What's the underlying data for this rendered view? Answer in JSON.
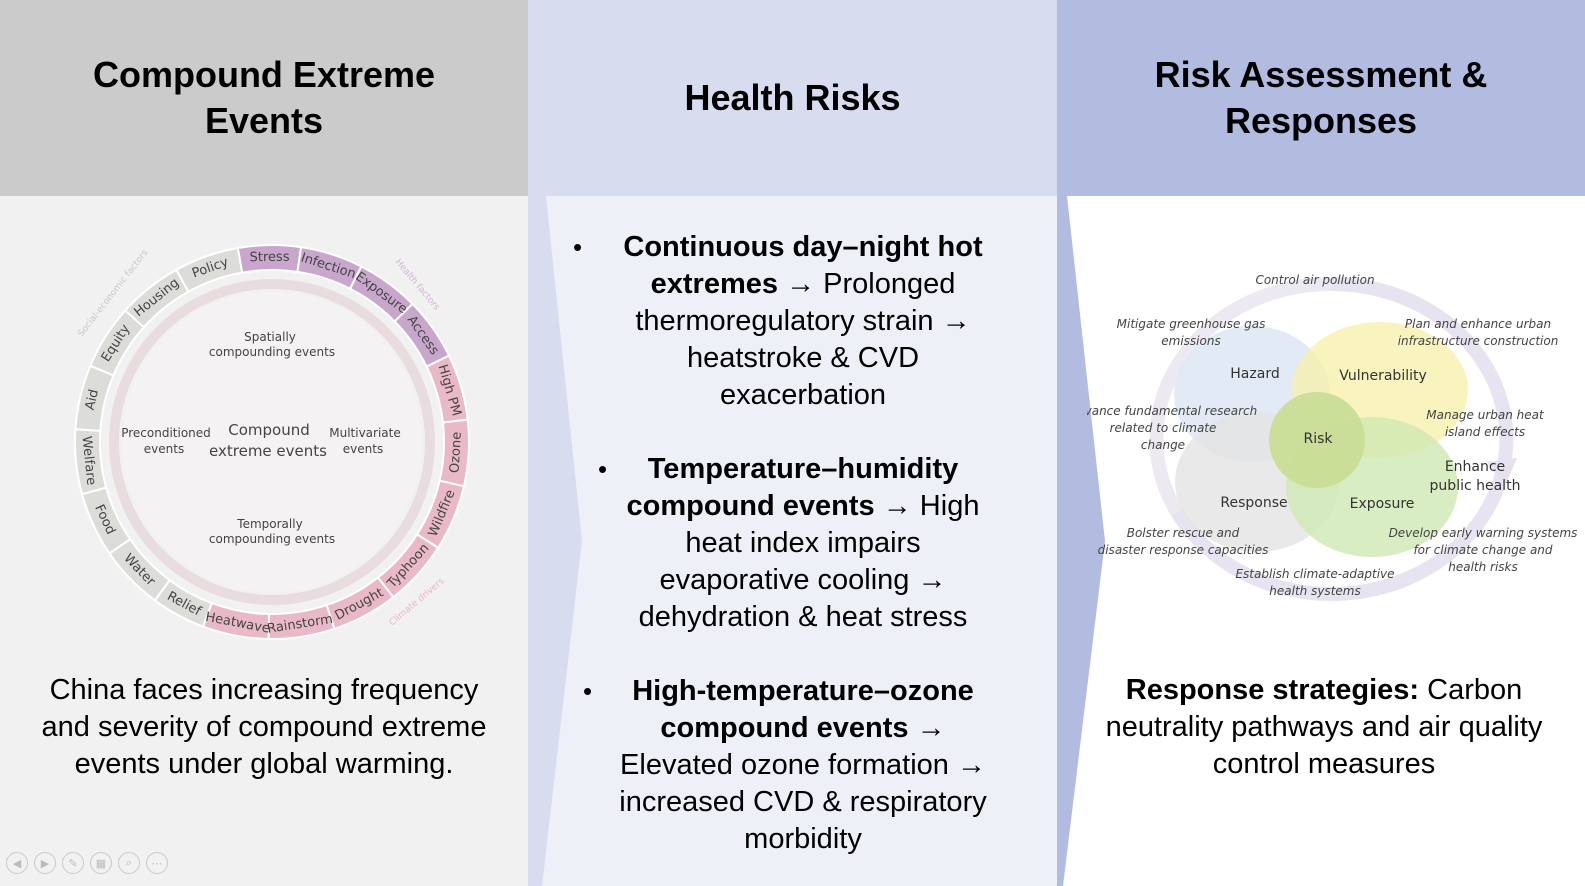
{
  "panels": {
    "left": {
      "title": "Compound Extreme Events",
      "caption": "China faces increasing frequency and severity of compound extreme events under global warming.",
      "diagram": {
        "center": "Compound extreme events",
        "spatial": "Spatially compounding events",
        "preconditioned": "Preconditioned events",
        "multivariate": "Multivariate events",
        "temporal": "Temporally compounding events",
        "sectors": {
          "social": "Social-economic factors",
          "health": "Health factors",
          "climate": "Climate drivers"
        },
        "ring_labels": {
          "social": [
            "Water",
            "Food",
            "Welfare",
            "Aid",
            "Equity",
            "Housing",
            "Policy"
          ],
          "relief": "Relief",
          "health": [
            "Stress",
            "Infection",
            "Exposure",
            "Access"
          ],
          "climate": [
            "High PM",
            "Ozone",
            "Wildfire",
            "Typhoon",
            "Drought",
            "Rainstorm",
            "Heatwave"
          ]
        }
      }
    },
    "middle": {
      "title": "Health Risks",
      "items": [
        {
          "bold": "Continuous day–night hot extremes",
          "rest": " → Prolonged thermoregulatory strain → heatstroke & CVD exacerbation"
        },
        {
          "bold": "Temperature–humidity compound events",
          "rest": " → High heat index impairs evaporative cooling → dehydration & heat stress"
        },
        {
          "bold": "High-temperature–ozone compound events",
          "rest": " → Elevated ozone formation → increased CVD & respiratory morbidity"
        }
      ],
      "bullet": "•"
    },
    "right": {
      "title": "Risk Assessment & Responses",
      "strategy_bold": "Response strategies:",
      "strategy_rest": " Carbon neutrality pathways and air quality control measures",
      "diagram": {
        "hazard": "Hazard",
        "vulnerability": "Vulnerability",
        "risk": "Risk",
        "response": "Response",
        "exposure": "Exposure",
        "enhance": "Enhance public health",
        "notes": {
          "control": "Control air pollution",
          "mitigate": "Mitigate greenhouse gas emissions",
          "plan": "Plan and enhance urban infrastructure construction",
          "advance": "Advance fundamental research related to climate change",
          "manage": "Manage urban heat island effects",
          "bolster": "Bolster rescue and disaster response capacities",
          "develop": "Develop early warning systems for climate change and health risks",
          "establish": "Establish climate-adaptive health systems"
        }
      }
    }
  },
  "colors": {
    "social_ring": "#dcdcd8",
    "health_ring": "#c9a7cc",
    "climate_ring": "#e9b9c7",
    "hazard": "#dfe9f4",
    "vulnerability": "#f7f0a8",
    "risk": "#c9dd96",
    "response": "#e3e3e3",
    "exposure": "#cfe8b3"
  },
  "toolbar_icons": [
    "prev-icon",
    "next-icon",
    "pen-icon",
    "slides-icon",
    "zoom-icon",
    "more-icon"
  ]
}
